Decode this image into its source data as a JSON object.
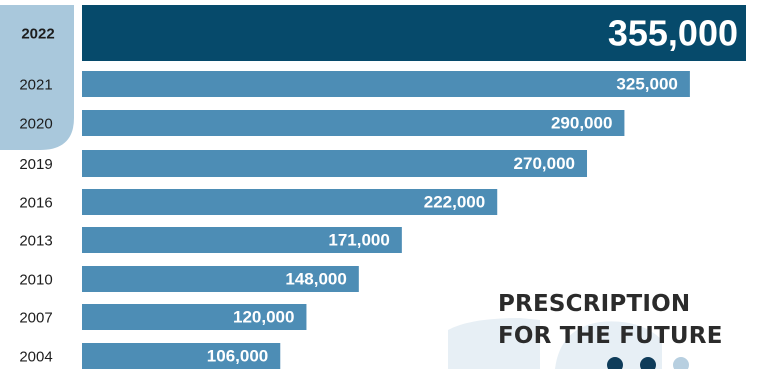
{
  "chart_data": {
    "type": "bar",
    "orientation": "horizontal",
    "categories": [
      "2022",
      "2021",
      "2020",
      "2019",
      "2016",
      "2013",
      "2010",
      "2007",
      "2004"
    ],
    "values": [
      355000,
      325000,
      290000,
      270000,
      222000,
      171000,
      148000,
      120000,
      106000
    ],
    "data_labels": [
      "355,000",
      "325,000",
      "290,000",
      "270,000",
      "222,000",
      "171,000",
      "148,000",
      "120,000",
      "106,000"
    ],
    "highlight_category": "2022",
    "xlim": [
      0,
      355000
    ],
    "grid": false,
    "legend": "none",
    "colors": {
      "bar": "#4d8db5",
      "highlight_bar": "#064a6b",
      "bar_label": "#ffffff",
      "year_label": "#1d1d1d",
      "highlight_year_bg": "#a9c8dc",
      "watermark": "#e7eff5",
      "dots": [
        "#0f3c5a",
        "#0f3c5a",
        "#b7cfe0"
      ]
    }
  },
  "brand": {
    "line1": "PRESCRIPTION",
    "line2": "FOR THE FUTURE"
  }
}
